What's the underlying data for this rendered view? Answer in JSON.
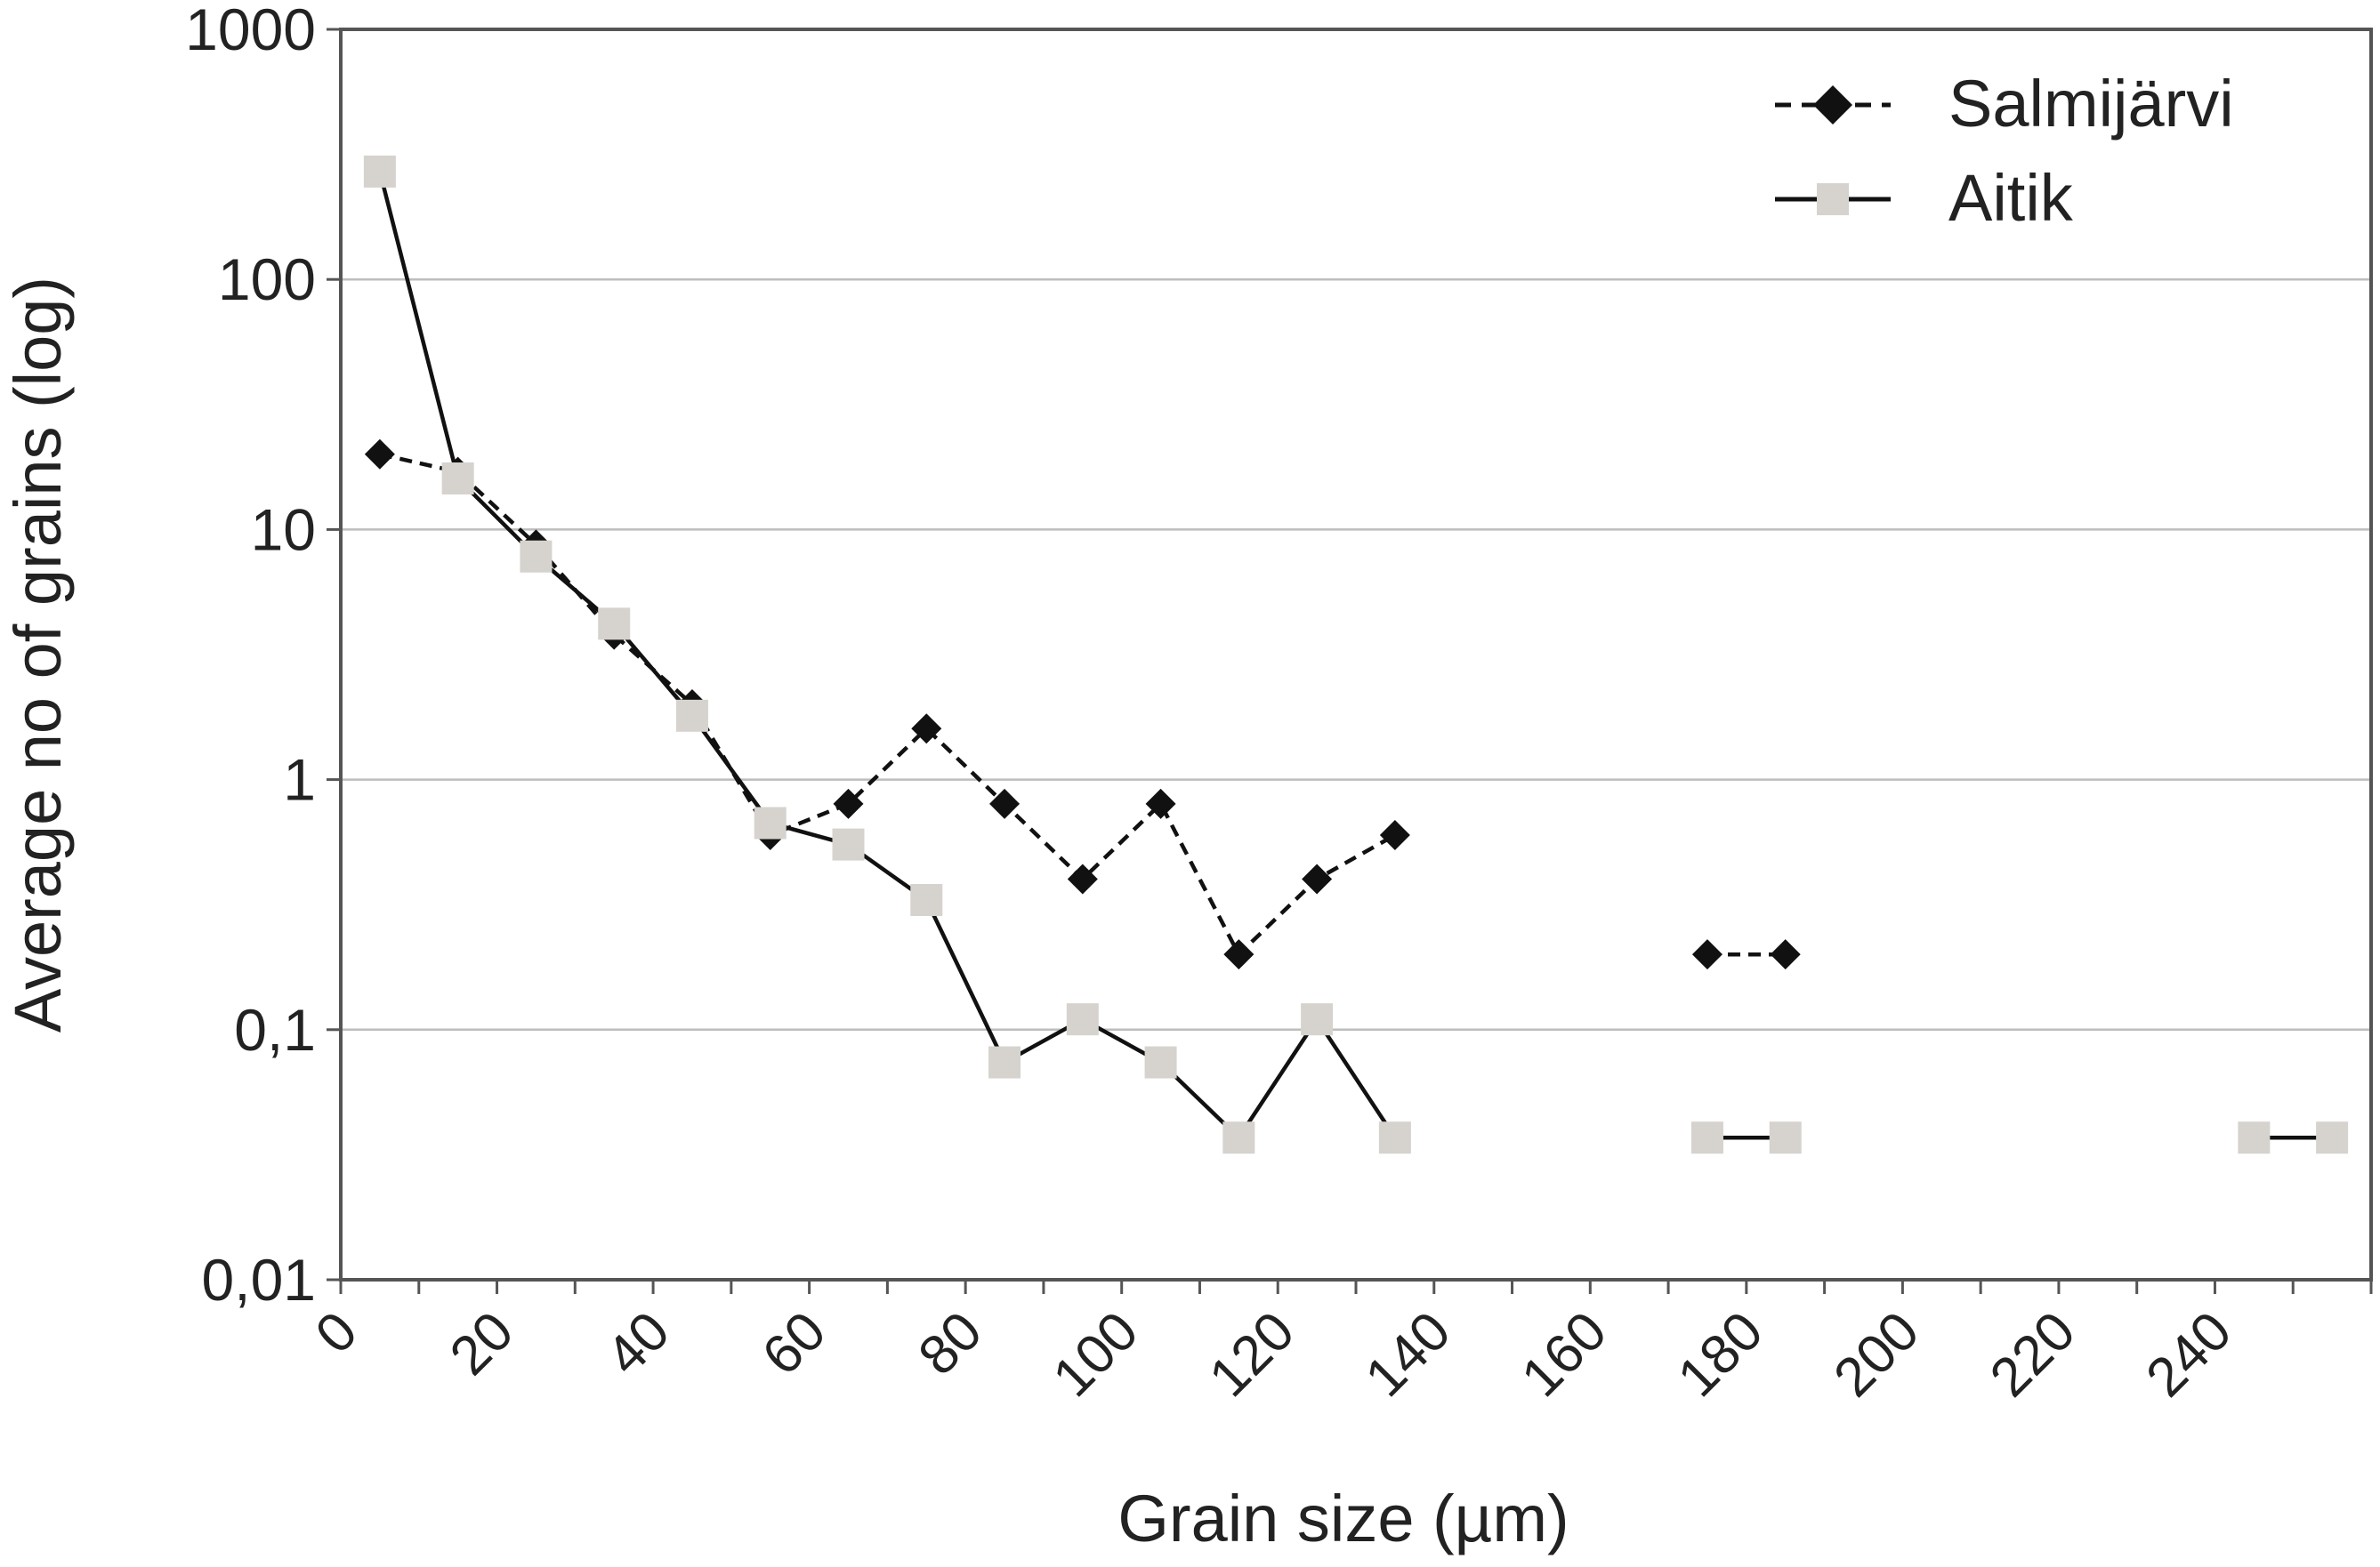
{
  "chart_data": {
    "type": "line",
    "title": "",
    "xlabel": "Grain size (µm)",
    "ylabel": "Average no of grains (log)",
    "yscale": "log",
    "xlim": [
      0,
      260
    ],
    "ylim": [
      0.01,
      1000
    ],
    "x_ticks": [
      0,
      20,
      40,
      60,
      80,
      100,
      120,
      140,
      160,
      180,
      200,
      220,
      240
    ],
    "x_tick_labels": [
      "0",
      "20",
      "40",
      "60",
      "80",
      "100",
      "120",
      "140",
      "160",
      "180",
      "200",
      "220",
      "240"
    ],
    "y_ticks": [
      0.01,
      0.1,
      1,
      10,
      100,
      1000
    ],
    "y_tick_labels": [
      "0,01",
      "0,1",
      "1",
      "10",
      "100",
      "1000"
    ],
    "grid": "horizontal",
    "legend_position": "top-right",
    "series": [
      {
        "name": "Salmijärvi",
        "marker": "diamond",
        "line": "dashed",
        "color": "#111111",
        "points": [
          [
            5,
            20
          ],
          [
            15,
            17
          ],
          [
            25,
            8.7
          ],
          [
            35,
            3.8
          ],
          [
            45,
            2.0
          ],
          [
            55,
            0.6
          ],
          [
            65,
            0.8
          ],
          [
            75,
            1.6
          ],
          [
            85,
            0.8
          ],
          [
            95,
            0.4
          ],
          [
            105,
            0.8
          ],
          [
            115,
            0.2
          ],
          [
            125,
            0.4
          ],
          [
            135,
            0.6
          ],
          [
            175,
            0.2
          ],
          [
            185,
            0.2
          ]
        ],
        "segments": [
          [
            0,
            13
          ],
          [
            14,
            15
          ]
        ]
      },
      {
        "name": "Aitik",
        "marker": "square",
        "line": "solid",
        "color": "#111111",
        "marker_color": "#d6d3cf",
        "points": [
          [
            5,
            270
          ],
          [
            15,
            16
          ],
          [
            25,
            7.8
          ],
          [
            35,
            4.2
          ],
          [
            45,
            1.8
          ],
          [
            55,
            0.67
          ],
          [
            65,
            0.55
          ],
          [
            75,
            0.33
          ],
          [
            85,
            0.074
          ],
          [
            95,
            0.11
          ],
          [
            105,
            0.074
          ],
          [
            115,
            0.037
          ],
          [
            125,
            0.11
          ],
          [
            135,
            0.037
          ],
          [
            175,
            0.037
          ],
          [
            185,
            0.037
          ],
          [
            245,
            0.037
          ],
          [
            255,
            0.037
          ]
        ],
        "segments": [
          [
            0,
            13
          ],
          [
            14,
            15
          ],
          [
            16,
            17
          ]
        ]
      }
    ]
  }
}
